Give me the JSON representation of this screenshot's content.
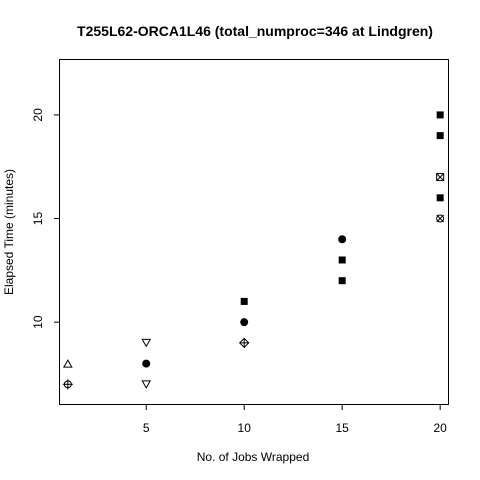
{
  "chart_data": {
    "type": "scatter",
    "title": "T255L62-ORCA1L46 (total_numproc=346 at Lindgren)",
    "xlabel": "No. of Jobs Wrapped",
    "ylabel": "Elapsed Time (minutes)",
    "xlim": [
      0.6,
      20.4
    ],
    "ylim": [
      6.05,
      22.65
    ],
    "xticks": [
      5,
      10,
      15,
      20
    ],
    "yticks": [
      10,
      15,
      20
    ],
    "grid": false,
    "legend": "none",
    "color": "#000000",
    "points": [
      {
        "x": 1,
        "y": 8,
        "marker": "triangle-up"
      },
      {
        "x": 1,
        "y": 7,
        "marker": "circle-plus"
      },
      {
        "x": 5,
        "y": 9,
        "marker": "triangle-down"
      },
      {
        "x": 5,
        "y": 8,
        "marker": "circle-filled"
      },
      {
        "x": 5,
        "y": 7,
        "marker": "triangle-down"
      },
      {
        "x": 10,
        "y": 11,
        "marker": "square-filled"
      },
      {
        "x": 10,
        "y": 10,
        "marker": "circle-filled"
      },
      {
        "x": 10,
        "y": 9,
        "marker": "diamond-plus"
      },
      {
        "x": 15,
        "y": 14,
        "marker": "circle-filled"
      },
      {
        "x": 15,
        "y": 13,
        "marker": "square-filled"
      },
      {
        "x": 15,
        "y": 12,
        "marker": "square-filled"
      },
      {
        "x": 20,
        "y": 20,
        "marker": "square-filled"
      },
      {
        "x": 20,
        "y": 19,
        "marker": "square-filled"
      },
      {
        "x": 20,
        "y": 17,
        "marker": "square-cross"
      },
      {
        "x": 20,
        "y": 16,
        "marker": "square-filled"
      },
      {
        "x": 20,
        "y": 15,
        "marker": "circle-cross"
      }
    ]
  }
}
